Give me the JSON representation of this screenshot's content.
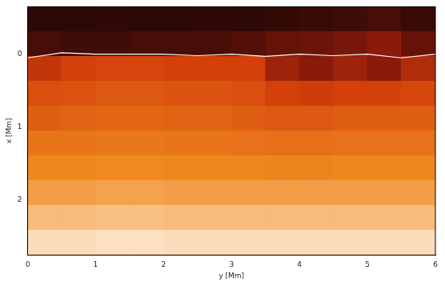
{
  "chart_data": {
    "type": "heatmap",
    "x_label": "y [Mm]",
    "y_label": "x [Mm]",
    "xlim": [
      0,
      6
    ],
    "xticks": [
      0,
      1,
      2,
      3,
      4,
      5,
      6
    ],
    "ylim": [
      2.75,
      -0.65
    ],
    "yticks": [
      0,
      1,
      2
    ],
    "grid": false,
    "x": [
      0.25,
      0.75,
      1.25,
      1.75,
      2.25,
      2.75,
      3.25,
      3.75,
      4.25,
      4.75,
      5.25,
      5.75
    ],
    "y": [
      -0.48,
      -0.14,
      0.2,
      0.54,
      0.88,
      1.22,
      1.56,
      1.9,
      2.24,
      2.58
    ],
    "zlim": [
      0,
      1
    ],
    "z": [
      [
        0.05,
        0.05,
        0.06,
        0.05,
        0.05,
        0.06,
        0.05,
        0.07,
        0.08,
        0.1,
        0.12,
        0.08
      ],
      [
        0.12,
        0.1,
        0.1,
        0.12,
        0.12,
        0.12,
        0.15,
        0.2,
        0.22,
        0.25,
        0.3,
        0.2
      ],
      [
        0.45,
        0.5,
        0.52,
        0.52,
        0.5,
        0.5,
        0.5,
        0.35,
        0.3,
        0.35,
        0.3,
        0.4
      ],
      [
        0.55,
        0.56,
        0.58,
        0.58,
        0.57,
        0.57,
        0.55,
        0.5,
        0.48,
        0.5,
        0.5,
        0.52
      ],
      [
        0.6,
        0.62,
        0.63,
        0.63,
        0.62,
        0.62,
        0.6,
        0.58,
        0.58,
        0.6,
        0.6,
        0.6
      ],
      [
        0.68,
        0.68,
        0.69,
        0.69,
        0.68,
        0.68,
        0.67,
        0.66,
        0.66,
        0.67,
        0.67,
        0.67
      ],
      [
        0.74,
        0.74,
        0.75,
        0.75,
        0.74,
        0.74,
        0.74,
        0.73,
        0.73,
        0.74,
        0.74,
        0.74
      ],
      [
        0.8,
        0.8,
        0.81,
        0.81,
        0.8,
        0.8,
        0.8,
        0.8,
        0.8,
        0.8,
        0.8,
        0.8
      ],
      [
        0.87,
        0.87,
        0.88,
        0.88,
        0.87,
        0.87,
        0.87,
        0.87,
        0.87,
        0.87,
        0.87,
        0.87
      ],
      [
        0.95,
        0.95,
        0.96,
        0.96,
        0.95,
        0.95,
        0.95,
        0.95,
        0.95,
        0.95,
        0.95,
        0.95
      ]
    ],
    "contour": {
      "color": "#ffffff",
      "x": [
        0,
        0.5,
        1,
        1.5,
        2,
        2.5,
        3,
        3.5,
        4,
        4.5,
        5,
        5.5,
        6
      ],
      "y": [
        0.05,
        -0.02,
        0.0,
        0.0,
        0.0,
        0.02,
        0.0,
        0.03,
        0.0,
        0.02,
        0.0,
        0.05,
        0.0
      ]
    }
  }
}
